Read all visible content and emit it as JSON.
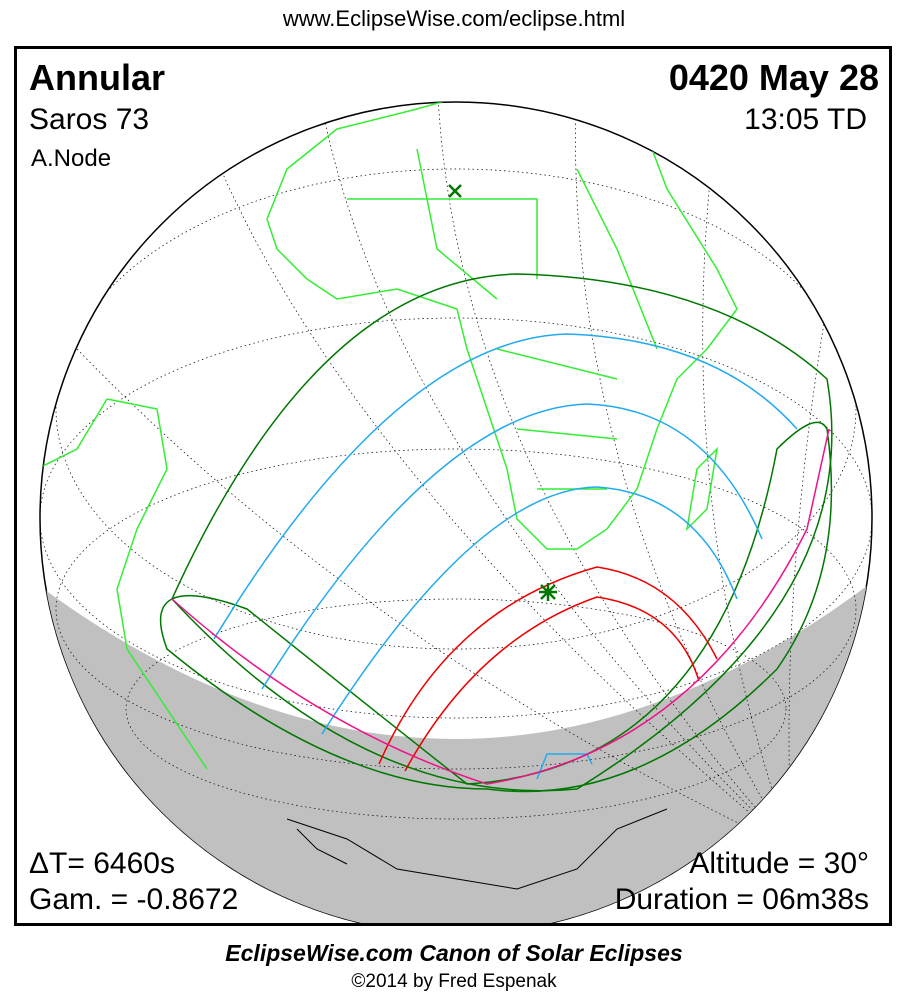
{
  "header_url": "www.EclipseWise.com/eclipse.html",
  "eclipse": {
    "type": "Annular",
    "saros": "Saros  73",
    "node": "A.Node",
    "date": "0420 May 28",
    "time": "13:05 TD",
    "delta_t": "ΔT=   6460s",
    "gamma": "Gam. = -0.8672",
    "altitude": "Altitude = 30°",
    "duration": "Duration = 06m38s"
  },
  "footer": {
    "title": "EclipseWise.com Canon of Solar Eclipses",
    "copyright": "©2014 by Fred Espenak"
  },
  "colors": {
    "land": "#33ee33",
    "penumbra_limits": "#007700",
    "partial_magnitude_lines": "#22aaee",
    "annular_path": "#ee0000",
    "rise_set_curve": "#ee1188",
    "night": "#c0c0c0",
    "grid": "#000000"
  }
}
